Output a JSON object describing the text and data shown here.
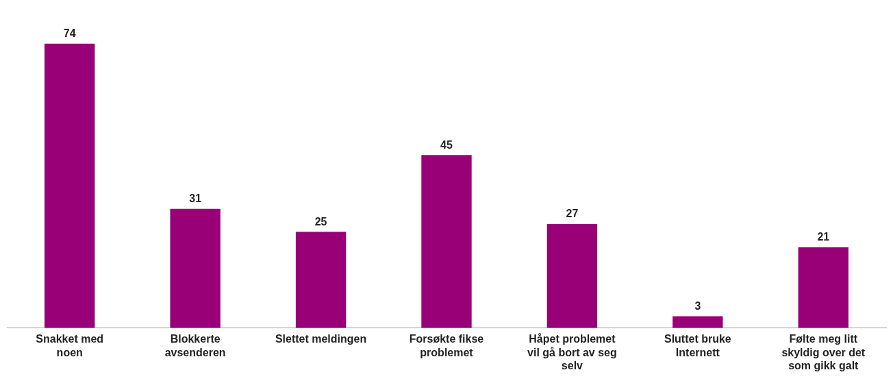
{
  "chart_data": {
    "type": "bar",
    "categories": [
      "Snakket med noen",
      "Blokkerte avsenderen",
      "Slettet meldingen",
      "Forsøkte fikse problemet",
      "Håpet problemet vil gå bort av seg selv",
      "Sluttet bruke Internett",
      "Følte meg litt skyldig over det som gikk galt"
    ],
    "values": [
      74,
      31,
      25,
      45,
      27,
      3,
      21
    ],
    "color": "#990077",
    "data_labels": true,
    "grid": false,
    "legend": false
  }
}
